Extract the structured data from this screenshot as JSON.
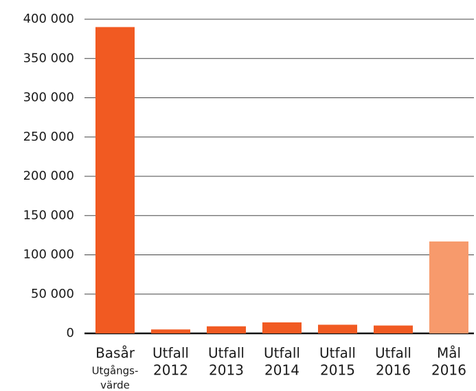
{
  "chart_data": {
    "type": "bar",
    "categories": [
      [
        "Basår",
        "Utgångs-",
        "värde"
      ],
      [
        "Utfall",
        "2012"
      ],
      [
        "Utfall",
        "2013"
      ],
      [
        "Utfall",
        "2014"
      ],
      [
        "Utfall",
        "2015"
      ],
      [
        "Utfall",
        "2016"
      ],
      [
        "Mål",
        "2016"
      ]
    ],
    "values": [
      390000,
      5000,
      9000,
      14000,
      11000,
      10000,
      117000
    ],
    "colors": [
      "#f15a22",
      "#f15a22",
      "#f15a22",
      "#f15a22",
      "#f15a22",
      "#f15a22",
      "#f79a6c"
    ],
    "ylim": [
      0,
      400000
    ],
    "yticks": [
      0,
      {
        "value": 50000,
        "label": "50 000"
      },
      {
        "value": 100000,
        "label": "100 000"
      },
      {
        "value": 150000,
        "label": "150 000"
      },
      {
        "value": 200000,
        "label": "200 000"
      },
      {
        "value": 250000,
        "label": "250 000"
      },
      {
        "value": 300000,
        "label": "300 000"
      },
      {
        "value": 350000,
        "label": "350 000"
      },
      {
        "value": 400000,
        "label": "400 000"
      }
    ],
    "grid": true
  }
}
